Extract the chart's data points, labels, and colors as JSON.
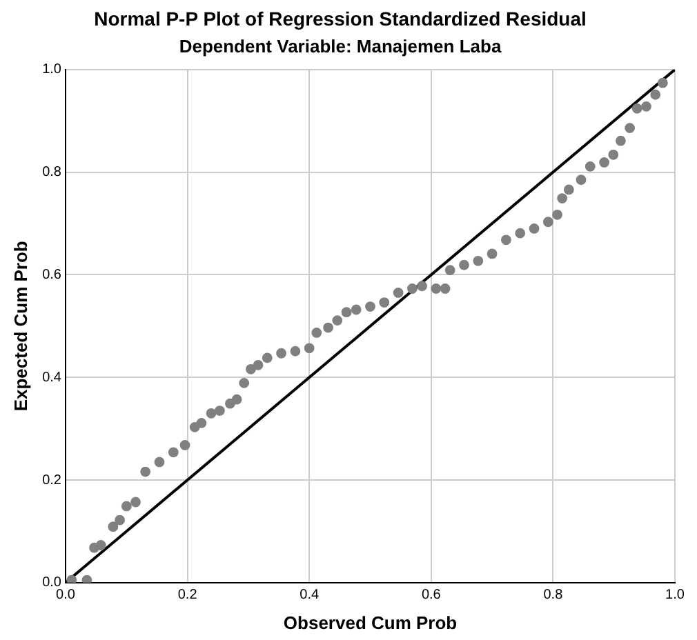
{
  "chart_data": {
    "type": "scatter",
    "title": "Normal P-P Plot of Regression Standardized Residual",
    "subtitle": "Dependent Variable: Manajemen Laba",
    "xlabel": "Observed Cum Prob",
    "ylabel": "Expected Cum Prob",
    "xlim": [
      0,
      1
    ],
    "ylim": [
      0,
      1
    ],
    "xticks": [
      {
        "value": 0,
        "label": "0.0"
      },
      0.2,
      0.4,
      0.6,
      0.8,
      {
        "value": 1,
        "label": "1.0"
      }
    ],
    "yticks": [
      {
        "value": 0,
        "label": "0.0"
      },
      0.2,
      0.4,
      0.6,
      0.8,
      {
        "value": 1,
        "label": "1.0"
      }
    ],
    "grid": true,
    "legend": false,
    "series": [
      {
        "marker": "circle",
        "color": "#808080",
        "x": [
          0.01,
          0.035,
          0.047,
          0.058,
          0.078,
          0.089,
          0.1,
          0.115,
          0.131,
          0.154,
          0.177,
          0.196,
          0.212,
          0.223,
          0.239,
          0.253,
          0.27,
          0.281,
          0.293,
          0.304,
          0.316,
          0.331,
          0.354,
          0.377,
          0.4,
          0.412,
          0.431,
          0.446,
          0.461,
          0.477,
          0.5,
          0.523,
          0.546,
          0.569,
          0.585,
          0.608,
          0.623,
          0.631,
          0.654,
          0.677,
          0.7,
          0.723,
          0.746,
          0.769,
          0.792,
          0.807,
          0.815,
          0.826,
          0.846,
          0.861,
          0.884,
          0.899,
          0.911,
          0.926,
          0.938,
          0.953,
          0.968,
          0.98
        ],
        "values": [
          0.005,
          0.005,
          0.068,
          0.073,
          0.109,
          0.122,
          0.149,
          0.157,
          0.216,
          0.235,
          0.254,
          0.268,
          0.303,
          0.311,
          0.33,
          0.335,
          0.349,
          0.357,
          0.389,
          0.416,
          0.424,
          0.438,
          0.447,
          0.451,
          0.457,
          0.487,
          0.497,
          0.511,
          0.527,
          0.532,
          0.538,
          0.546,
          0.565,
          0.573,
          0.578,
          0.573,
          0.573,
          0.609,
          0.619,
          0.627,
          0.641,
          0.668,
          0.681,
          0.69,
          0.703,
          0.717,
          0.749,
          0.766,
          0.785,
          0.811,
          0.819,
          0.834,
          0.861,
          0.886,
          0.924,
          0.928,
          0.951,
          0.974
        ]
      },
      {
        "type": "line",
        "marker": "none",
        "color": "#000000",
        "x": [
          0,
          1
        ],
        "values": [
          0,
          1
        ]
      }
    ]
  }
}
